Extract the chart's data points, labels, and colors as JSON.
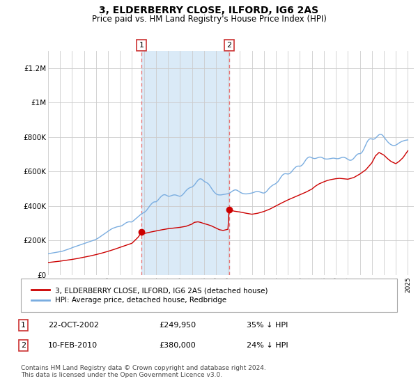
{
  "title": "3, ELDERBERRY CLOSE, ILFORD, IG6 2AS",
  "subtitle": "Price paid vs. HM Land Registry's House Price Index (HPI)",
  "title_fontsize": 10,
  "subtitle_fontsize": 8.5,
  "background_color": "#ffffff",
  "plot_bg_color": "#ffffff",
  "grid_color": "#cccccc",
  "ylim": [
    0,
    1300000
  ],
  "xlim_start": 1995.0,
  "xlim_end": 2025.5,
  "yticks": [
    0,
    200000,
    400000,
    600000,
    800000,
    1000000,
    1200000
  ],
  "ytick_labels": [
    "£0",
    "£200K",
    "£400K",
    "£600K",
    "£800K",
    "£1M",
    "£1.2M"
  ],
  "xtick_years": [
    1995,
    1996,
    1997,
    1998,
    1999,
    2000,
    2001,
    2002,
    2003,
    2004,
    2005,
    2006,
    2007,
    2008,
    2009,
    2010,
    2011,
    2012,
    2013,
    2014,
    2015,
    2016,
    2017,
    2018,
    2019,
    2020,
    2021,
    2022,
    2023,
    2024,
    2025
  ],
  "shade_start": 2002.8,
  "shade_end": 2010.1,
  "shade_color": "#daeaf7",
  "marker1_x": 2002.8,
  "marker1_y": 249950,
  "marker1_label": "1",
  "marker2_x": 2010.1,
  "marker2_y": 380000,
  "marker2_label": "2",
  "marker_color": "#cc0000",
  "dashed_color": "#e87070",
  "red_line_color": "#cc0000",
  "blue_line_color": "#7aade0",
  "legend_red_label": "3, ELDERBERRY CLOSE, ILFORD, IG6 2AS (detached house)",
  "legend_blue_label": "HPI: Average price, detached house, Redbridge",
  "annotation1_date": "22-OCT-2002",
  "annotation1_price": "£249,950",
  "annotation1_pct": "35% ↓ HPI",
  "annotation2_date": "10-FEB-2010",
  "annotation2_price": "£380,000",
  "annotation2_pct": "24% ↓ HPI",
  "footer": "Contains HM Land Registry data © Crown copyright and database right 2024.\nThis data is licensed under the Open Government Licence v3.0.",
  "hpi_x": [
    1995.0,
    1995.083,
    1995.167,
    1995.25,
    1995.333,
    1995.417,
    1995.5,
    1995.583,
    1995.667,
    1995.75,
    1995.833,
    1995.917,
    1996.0,
    1996.083,
    1996.167,
    1996.25,
    1996.333,
    1996.417,
    1996.5,
    1996.583,
    1996.667,
    1996.75,
    1996.833,
    1996.917,
    1997.0,
    1997.083,
    1997.167,
    1997.25,
    1997.333,
    1997.417,
    1997.5,
    1997.583,
    1997.667,
    1997.75,
    1997.833,
    1997.917,
    1998.0,
    1998.083,
    1998.167,
    1998.25,
    1998.333,
    1998.417,
    1998.5,
    1998.583,
    1998.667,
    1998.75,
    1998.833,
    1998.917,
    1999.0,
    1999.083,
    1999.167,
    1999.25,
    1999.333,
    1999.417,
    1999.5,
    1999.583,
    1999.667,
    1999.75,
    1999.833,
    1999.917,
    2000.0,
    2000.083,
    2000.167,
    2000.25,
    2000.333,
    2000.417,
    2000.5,
    2000.583,
    2000.667,
    2000.75,
    2000.833,
    2000.917,
    2001.0,
    2001.083,
    2001.167,
    2001.25,
    2001.333,
    2001.417,
    2001.5,
    2001.583,
    2001.667,
    2001.75,
    2001.833,
    2001.917,
    2002.0,
    2002.083,
    2002.167,
    2002.25,
    2002.333,
    2002.417,
    2002.5,
    2002.583,
    2002.667,
    2002.75,
    2002.833,
    2002.917,
    2003.0,
    2003.083,
    2003.167,
    2003.25,
    2003.333,
    2003.417,
    2003.5,
    2003.583,
    2003.667,
    2003.75,
    2003.833,
    2003.917,
    2004.0,
    2004.083,
    2004.167,
    2004.25,
    2004.333,
    2004.417,
    2004.5,
    2004.583,
    2004.667,
    2004.75,
    2004.833,
    2004.917,
    2005.0,
    2005.083,
    2005.167,
    2005.25,
    2005.333,
    2005.417,
    2005.5,
    2005.583,
    2005.667,
    2005.75,
    2005.833,
    2005.917,
    2006.0,
    2006.083,
    2006.167,
    2006.25,
    2006.333,
    2006.417,
    2006.5,
    2006.583,
    2006.667,
    2006.75,
    2006.833,
    2006.917,
    2007.0,
    2007.083,
    2007.167,
    2007.25,
    2007.333,
    2007.417,
    2007.5,
    2007.583,
    2007.667,
    2007.75,
    2007.833,
    2007.917,
    2008.0,
    2008.083,
    2008.167,
    2008.25,
    2008.333,
    2008.417,
    2008.5,
    2008.583,
    2008.667,
    2008.75,
    2008.833,
    2008.917,
    2009.0,
    2009.083,
    2009.167,
    2009.25,
    2009.333,
    2009.417,
    2009.5,
    2009.583,
    2009.667,
    2009.75,
    2009.833,
    2009.917,
    2010.0,
    2010.083,
    2010.167,
    2010.25,
    2010.333,
    2010.417,
    2010.5,
    2010.583,
    2010.667,
    2010.75,
    2010.833,
    2010.917,
    2011.0,
    2011.083,
    2011.167,
    2011.25,
    2011.333,
    2011.417,
    2011.5,
    2011.583,
    2011.667,
    2011.75,
    2011.833,
    2011.917,
    2012.0,
    2012.083,
    2012.167,
    2012.25,
    2012.333,
    2012.417,
    2012.5,
    2012.583,
    2012.667,
    2012.75,
    2012.833,
    2012.917,
    2013.0,
    2013.083,
    2013.167,
    2013.25,
    2013.333,
    2013.417,
    2013.5,
    2013.583,
    2013.667,
    2013.75,
    2013.833,
    2013.917,
    2014.0,
    2014.083,
    2014.167,
    2014.25,
    2014.333,
    2014.417,
    2014.5,
    2014.583,
    2014.667,
    2014.75,
    2014.833,
    2014.917,
    2015.0,
    2015.083,
    2015.167,
    2015.25,
    2015.333,
    2015.417,
    2015.5,
    2015.583,
    2015.667,
    2015.75,
    2015.833,
    2015.917,
    2016.0,
    2016.083,
    2016.167,
    2016.25,
    2016.333,
    2016.417,
    2016.5,
    2016.583,
    2016.667,
    2016.75,
    2016.833,
    2016.917,
    2017.0,
    2017.083,
    2017.167,
    2017.25,
    2017.333,
    2017.417,
    2017.5,
    2017.583,
    2017.667,
    2017.75,
    2017.833,
    2017.917,
    2018.0,
    2018.083,
    2018.167,
    2018.25,
    2018.333,
    2018.417,
    2018.5,
    2018.583,
    2018.667,
    2018.75,
    2018.833,
    2018.917,
    2019.0,
    2019.083,
    2019.167,
    2019.25,
    2019.333,
    2019.417,
    2019.5,
    2019.583,
    2019.667,
    2019.75,
    2019.833,
    2019.917,
    2020.0,
    2020.083,
    2020.167,
    2020.25,
    2020.333,
    2020.417,
    2020.5,
    2020.583,
    2020.667,
    2020.75,
    2020.833,
    2020.917,
    2021.0,
    2021.083,
    2021.167,
    2021.25,
    2021.333,
    2021.417,
    2021.5,
    2021.583,
    2021.667,
    2021.75,
    2021.833,
    2021.917,
    2022.0,
    2022.083,
    2022.167,
    2022.25,
    2022.333,
    2022.417,
    2022.5,
    2022.583,
    2022.667,
    2022.75,
    2022.833,
    2022.917,
    2023.0,
    2023.083,
    2023.167,
    2023.25,
    2023.333,
    2023.417,
    2023.5,
    2023.583,
    2023.667,
    2023.75,
    2023.833,
    2023.917,
    2024.0,
    2024.083,
    2024.167,
    2024.25,
    2024.333,
    2024.417,
    2024.5,
    2024.583,
    2024.667,
    2024.75,
    2024.833,
    2024.917,
    2025.0
  ],
  "hpi_y": [
    122000,
    124000,
    125000,
    126000,
    127000,
    128000,
    129000,
    130000,
    131000,
    132000,
    133000,
    134000,
    135000,
    136000,
    137000,
    139000,
    141000,
    143000,
    145000,
    147000,
    149000,
    151000,
    153000,
    155000,
    158000,
    160000,
    162000,
    164000,
    166000,
    168000,
    170000,
    172000,
    174000,
    176000,
    178000,
    180000,
    182000,
    184000,
    186000,
    188000,
    190000,
    192000,
    194000,
    196000,
    198000,
    200000,
    202000,
    204000,
    207000,
    210000,
    213000,
    217000,
    221000,
    225000,
    229000,
    233000,
    237000,
    241000,
    245000,
    249000,
    253000,
    257000,
    261000,
    265000,
    268000,
    271000,
    273000,
    275000,
    277000,
    279000,
    280000,
    281000,
    282000,
    284000,
    286000,
    290000,
    294000,
    298000,
    302000,
    305000,
    307000,
    308000,
    308000,
    307000,
    308000,
    312000,
    317000,
    322000,
    327000,
    332000,
    337000,
    342000,
    347000,
    352000,
    356000,
    359000,
    362000,
    366000,
    371000,
    378000,
    386000,
    394000,
    402000,
    409000,
    415000,
    420000,
    423000,
    424000,
    424000,
    428000,
    434000,
    441000,
    448000,
    454000,
    459000,
    463000,
    465000,
    465000,
    463000,
    460000,
    457000,
    456000,
    457000,
    459000,
    461000,
    463000,
    464000,
    464000,
    463000,
    461000,
    459000,
    457000,
    456000,
    458000,
    462000,
    467000,
    474000,
    481000,
    488000,
    494000,
    499000,
    503000,
    506000,
    508000,
    510000,
    514000,
    519000,
    526000,
    534000,
    542000,
    549000,
    554000,
    557000,
    557000,
    554000,
    549000,
    544000,
    540000,
    537000,
    534000,
    530000,
    524000,
    516000,
    507000,
    498000,
    490000,
    482000,
    476000,
    471000,
    467000,
    465000,
    464000,
    464000,
    464000,
    465000,
    466000,
    467000,
    468000,
    469000,
    470000,
    471000,
    473000,
    476000,
    480000,
    484000,
    488000,
    491000,
    493000,
    493000,
    491000,
    488000,
    484000,
    480000,
    477000,
    474000,
    472000,
    471000,
    470000,
    470000,
    470000,
    471000,
    472000,
    473000,
    474000,
    475000,
    477000,
    479000,
    481000,
    483000,
    484000,
    484000,
    483000,
    481000,
    479000,
    477000,
    475000,
    475000,
    477000,
    481000,
    487000,
    494000,
    501000,
    507000,
    512000,
    517000,
    521000,
    524000,
    527000,
    530000,
    535000,
    541000,
    549000,
    558000,
    567000,
    575000,
    581000,
    585000,
    587000,
    587000,
    586000,
    585000,
    586000,
    589000,
    594000,
    601000,
    608000,
    615000,
    621000,
    626000,
    629000,
    631000,
    631000,
    630000,
    632000,
    636000,
    642000,
    650000,
    659000,
    668000,
    675000,
    680000,
    683000,
    684000,
    682000,
    679000,
    677000,
    675000,
    675000,
    676000,
    678000,
    680000,
    682000,
    683000,
    683000,
    681000,
    678000,
    675000,
    673000,
    672000,
    672000,
    672000,
    673000,
    674000,
    675000,
    676000,
    677000,
    677000,
    676000,
    675000,
    674000,
    674000,
    675000,
    677000,
    679000,
    681000,
    682000,
    682000,
    680000,
    678000,
    674000,
    670000,
    667000,
    665000,
    665000,
    667000,
    671000,
    677000,
    684000,
    691000,
    697000,
    701000,
    703000,
    703000,
    705000,
    710000,
    719000,
    730000,
    743000,
    756000,
    768000,
    778000,
    785000,
    789000,
    790000,
    788000,
    787000,
    787000,
    790000,
    795000,
    801000,
    807000,
    812000,
    815000,
    815000,
    813000,
    808000,
    801000,
    793000,
    785000,
    778000,
    771000,
    765000,
    760000,
    756000,
    753000,
    751000,
    750000,
    751000,
    753000,
    756000,
    760000,
    764000,
    768000,
    771000,
    774000,
    776000,
    778000,
    780000,
    781000,
    782000,
    783000
  ],
  "red_x": [
    1995.0,
    1995.5,
    1996.0,
    1996.5,
    1997.0,
    1997.5,
    1998.0,
    1998.5,
    1999.0,
    1999.5,
    2000.0,
    2000.5,
    2001.0,
    2001.5,
    2002.0,
    2002.5,
    2002.83,
    2003.0,
    2003.5,
    2004.0,
    2004.5,
    2005.0,
    2005.5,
    2006.0,
    2006.5,
    2007.0,
    2007.2,
    2007.5,
    2007.7,
    2008.0,
    2008.3,
    2008.6,
    2009.0,
    2009.3,
    2009.6,
    2010.0,
    2010.1,
    2010.5,
    2011.0,
    2011.5,
    2012.0,
    2012.5,
    2013.0,
    2013.5,
    2014.0,
    2014.5,
    2015.0,
    2015.5,
    2016.0,
    2016.5,
    2017.0,
    2017.3,
    2017.6,
    2018.0,
    2018.3,
    2018.6,
    2019.0,
    2019.3,
    2019.6,
    2020.0,
    2020.5,
    2021.0,
    2021.5,
    2022.0,
    2022.3,
    2022.6,
    2023.0,
    2023.3,
    2023.6,
    2024.0,
    2024.3,
    2024.6,
    2025.0
  ],
  "red_y": [
    72000,
    76000,
    80000,
    85000,
    90000,
    96000,
    103000,
    110000,
    118000,
    127000,
    137000,
    148000,
    160000,
    172000,
    184000,
    218000,
    249950,
    240000,
    248000,
    255000,
    262000,
    268000,
    272000,
    276000,
    282000,
    295000,
    305000,
    308000,
    305000,
    298000,
    292000,
    285000,
    272000,
    262000,
    258000,
    265000,
    380000,
    370000,
    365000,
    358000,
    352000,
    358000,
    368000,
    382000,
    400000,
    418000,
    435000,
    450000,
    465000,
    480000,
    498000,
    515000,
    528000,
    540000,
    548000,
    553000,
    558000,
    560000,
    558000,
    555000,
    565000,
    585000,
    610000,
    650000,
    690000,
    710000,
    695000,
    675000,
    658000,
    645000,
    660000,
    680000,
    720000
  ]
}
